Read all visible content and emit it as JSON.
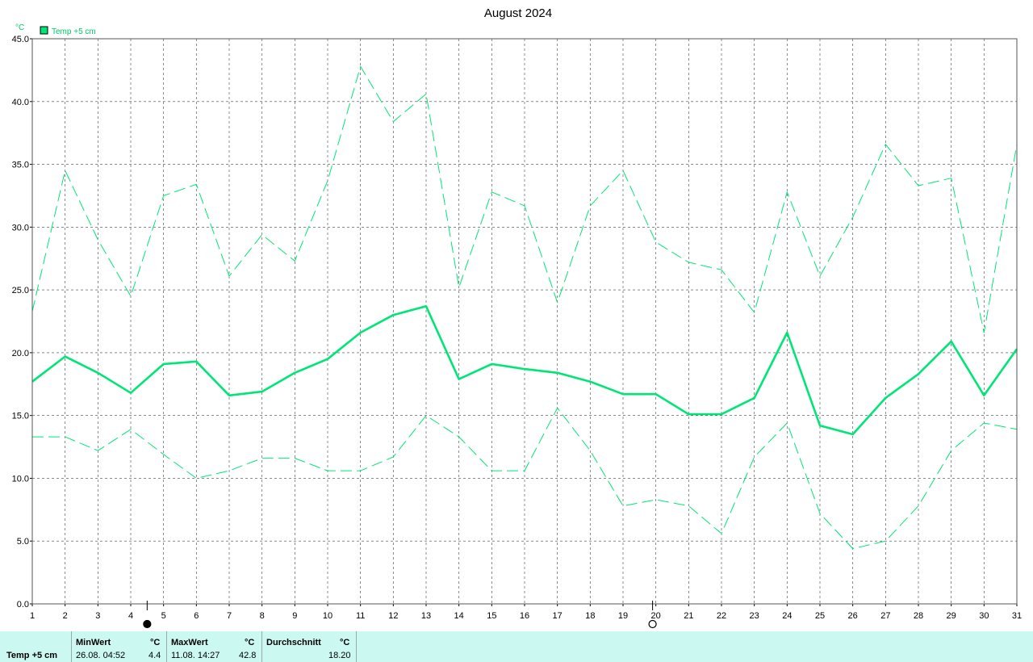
{
  "chart_data": {
    "type": "line",
    "title": "August 2024",
    "ylabel": "°C",
    "ylim": [
      0,
      45
    ],
    "yticks": [
      "0.0",
      "5.0",
      "10.0",
      "15.0",
      "20.0",
      "25.0",
      "30.0",
      "35.0",
      "40.0",
      "45.0"
    ],
    "x": [
      1,
      2,
      3,
      4,
      5,
      6,
      7,
      8,
      9,
      10,
      11,
      12,
      13,
      14,
      15,
      16,
      17,
      18,
      19,
      20,
      21,
      22,
      23,
      24,
      25,
      26,
      27,
      28,
      29,
      30,
      31
    ],
    "legend": {
      "label": "Temp +5 cm",
      "position": "top-left"
    },
    "grid": true,
    "series": [
      {
        "name": "Temp +5 cm",
        "style": "solid",
        "values": [
          17.7,
          19.7,
          18.4,
          16.8,
          19.1,
          19.3,
          16.6,
          16.9,
          18.4,
          19.5,
          21.6,
          23.0,
          23.7,
          17.9,
          19.1,
          18.7,
          18.4,
          17.7,
          16.7,
          16.7,
          15.1,
          15.1,
          16.4,
          21.6,
          14.2,
          13.5,
          16.4,
          18.3,
          20.9,
          16.6,
          20.3
        ]
      },
      {
        "style": "dashed",
        "values": [
          23.3,
          34.5,
          29.0,
          24.5,
          32.5,
          33.4,
          26.1,
          29.4,
          27.3,
          33.7,
          42.8,
          38.4,
          40.6,
          25.2,
          32.8,
          31.7,
          24.0,
          31.7,
          34.5,
          28.8,
          27.2,
          26.6,
          23.2,
          32.8,
          26.1,
          30.8,
          36.6,
          33.3,
          33.9,
          21.6,
          36.6
        ]
      },
      {
        "style": "dashed",
        "values": [
          13.3,
          13.3,
          12.2,
          13.9,
          11.9,
          10.0,
          10.6,
          11.6,
          11.6,
          10.6,
          10.6,
          11.7,
          15.0,
          13.3,
          10.6,
          10.6,
          15.6,
          12.2,
          7.8,
          8.3,
          7.8,
          5.6,
          11.7,
          14.4,
          7.2,
          4.4,
          5.0,
          7.8,
          12.2,
          14.4,
          13.9
        ]
      }
    ],
    "moon_phases": [
      {
        "day": 4.5,
        "phase": "new"
      },
      {
        "day": 19.9,
        "phase": "full"
      }
    ],
    "colors": {
      "series": "#00e676",
      "legend_text": "#00cc66",
      "stats_bg": "#ccf8f2"
    }
  },
  "stats": {
    "row_label": "Temp +5 cm",
    "min": {
      "header": "MinWert",
      "unit": "°C",
      "when": "26.08.  04:52",
      "value": "4.4"
    },
    "max": {
      "header": "MaxWert",
      "unit": "°C",
      "when": "11.08.  14:27",
      "value": "42.8"
    },
    "avg": {
      "header": "Durchschnitt",
      "unit": "°C",
      "value": "18.20"
    }
  }
}
